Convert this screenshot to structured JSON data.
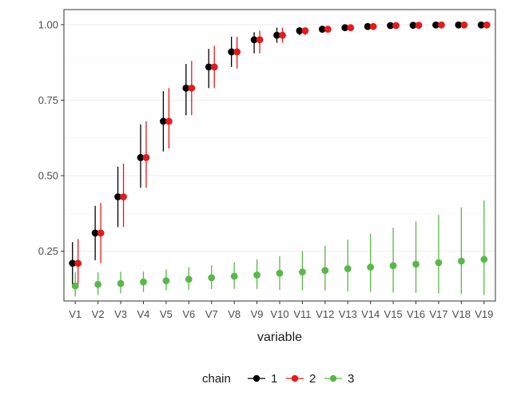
{
  "chart_data": {
    "type": "scatter",
    "subtype": "pointrange",
    "xlabel": "variable",
    "ylabel": "",
    "ylim": [
      0.085,
      1.05
    ],
    "yticks": [
      0.25,
      0.5,
      0.75,
      1.0
    ],
    "ytick_labels": [
      "0.25",
      "0.50",
      "0.75",
      "1.00"
    ],
    "categories": [
      "V1",
      "V2",
      "V3",
      "V4",
      "V5",
      "V6",
      "V7",
      "V8",
      "V9",
      "V10",
      "V11",
      "V12",
      "V13",
      "V14",
      "V15",
      "V16",
      "V17",
      "V18",
      "V19"
    ],
    "grid": true,
    "legend": {
      "title": "chain",
      "position": "bottom"
    },
    "series": [
      {
        "name": "1",
        "color": "#000000",
        "values": [
          0.21,
          0.31,
          0.43,
          0.56,
          0.68,
          0.79,
          0.86,
          0.91,
          0.95,
          0.965,
          0.98,
          0.985,
          0.99,
          0.994,
          0.997,
          0.998,
          0.999,
          0.999,
          0.999
        ],
        "lower": [
          0.14,
          0.22,
          0.33,
          0.46,
          0.58,
          0.7,
          0.79,
          0.86,
          0.905,
          0.94,
          0.965,
          0.975,
          0.985,
          0.99,
          0.994,
          0.996,
          0.997,
          0.998,
          0.998
        ],
        "upper": [
          0.28,
          0.4,
          0.53,
          0.67,
          0.78,
          0.87,
          0.92,
          0.96,
          0.975,
          0.99,
          0.99,
          0.995,
          0.998,
          1.0,
          1.0,
          1.0,
          1.0,
          1.0,
          1.0
        ]
      },
      {
        "name": "2",
        "color": "#e41a1c",
        "values": [
          0.21,
          0.31,
          0.43,
          0.56,
          0.68,
          0.79,
          0.86,
          0.91,
          0.95,
          0.965,
          0.98,
          0.985,
          0.99,
          0.994,
          0.997,
          0.998,
          0.999,
          0.999,
          0.999
        ],
        "lower": [
          0.13,
          0.21,
          0.33,
          0.46,
          0.59,
          0.7,
          0.79,
          0.855,
          0.905,
          0.94,
          0.965,
          0.975,
          0.985,
          0.99,
          0.994,
          0.996,
          0.997,
          0.998,
          0.998
        ],
        "upper": [
          0.29,
          0.41,
          0.54,
          0.68,
          0.79,
          0.88,
          0.93,
          0.96,
          0.98,
          0.99,
          0.99,
          0.995,
          0.998,
          1.0,
          1.0,
          1.0,
          1.0,
          1.0,
          1.0
        ]
      },
      {
        "name": "3",
        "color": "#5ab74a",
        "values": [
          0.135,
          0.14,
          0.143,
          0.148,
          0.152,
          0.157,
          0.162,
          0.167,
          0.171,
          0.177,
          0.181,
          0.186,
          0.192,
          0.197,
          0.202,
          0.207,
          0.212,
          0.217,
          0.223
        ],
        "lower": [
          0.1,
          0.105,
          0.11,
          0.115,
          0.12,
          0.122,
          0.125,
          0.125,
          0.125,
          0.122,
          0.12,
          0.12,
          0.117,
          0.115,
          0.113,
          0.112,
          0.11,
          0.108,
          0.105
        ],
        "upper": [
          0.18,
          0.18,
          0.182,
          0.183,
          0.19,
          0.197,
          0.203,
          0.213,
          0.223,
          0.233,
          0.25,
          0.268,
          0.288,
          0.308,
          0.328,
          0.348,
          0.37,
          0.395,
          0.418
        ]
      }
    ]
  }
}
